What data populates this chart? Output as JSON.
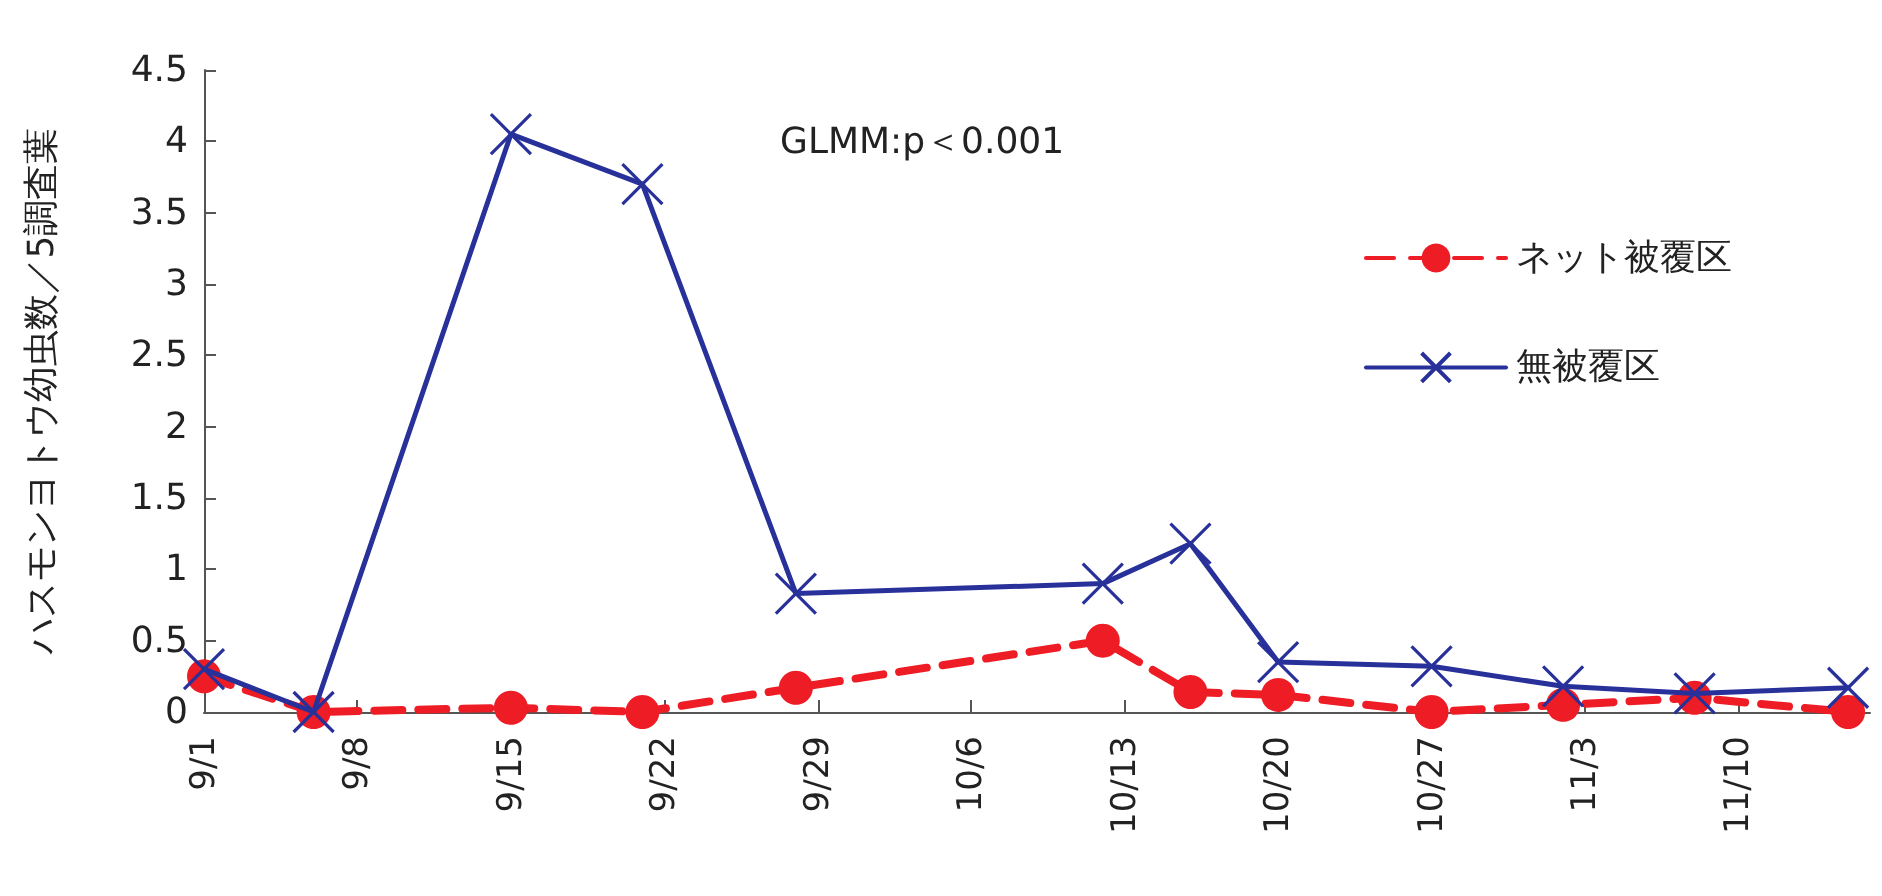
{
  "chart_data": {
    "type": "line",
    "ylabel": "ハスモンヨトウ幼虫数／5調査葉",
    "annotations": [
      "GLMM:p＜0.001"
    ],
    "x": [
      "--09-01",
      "--09-06",
      "--09-15",
      "--09-21",
      "--09-28",
      "--10-12",
      "--10-16",
      "--10-20",
      "--10-27",
      "--11-02",
      "--11-08",
      "--11-15"
    ],
    "series": [
      {
        "name": "ネット被覆区",
        "color": "#ee1c25",
        "marker": "circle",
        "line_style": "dashed",
        "values": [
          0.25,
          0,
          0.03,
          0,
          0.17,
          0.5,
          0.14,
          0.12,
          0,
          0.05,
          0.1,
          0
        ]
      },
      {
        "name": "無被覆区",
        "color": "#28309a",
        "marker": "cross",
        "line_style": "solid",
        "values": [
          0.3,
          0,
          4.05,
          3.7,
          0.83,
          0.9,
          1.18,
          0.35,
          0.32,
          0.18,
          0.13,
          0.17
        ]
      }
    ],
    "xlim": [
      "--09-01",
      "--11-16"
    ],
    "xticks": [
      {
        "value": "--09-01",
        "label": "9/1"
      },
      {
        "value": "--09-08",
        "label": "9/8"
      },
      {
        "value": "--09-15",
        "label": "9/15"
      },
      {
        "value": "--09-22",
        "label": "9/22"
      },
      {
        "value": "--09-29",
        "label": "9/29"
      },
      {
        "value": "--10-06",
        "label": "10/6"
      },
      {
        "value": "--10-13",
        "label": "10/13"
      },
      {
        "value": "--10-20",
        "label": "10/20"
      },
      {
        "value": "--10-27",
        "label": "10/27"
      },
      {
        "value": "--11-03",
        "label": "11/3"
      },
      {
        "value": "--11-10",
        "label": "11/10"
      }
    ],
    "ylim": [
      0,
      4.5
    ],
    "yticks": [
      0,
      0.5,
      1,
      1.5,
      2,
      2.5,
      3,
      3.5,
      4,
      4.5
    ],
    "grid": false,
    "legend": "right"
  }
}
